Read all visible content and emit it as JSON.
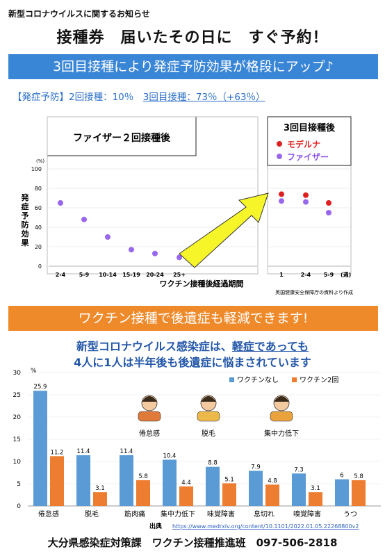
{
  "header": {
    "notice": "新型コロナウイルスに関するお知らせ",
    "headline": "接種券　届いたその日に　すぐ予約！"
  },
  "banner1": {
    "text": "3回目接種により発症予防効果が格段にアップ♪",
    "sub_label": "【発症予防】2回接種：10％　",
    "sub_highlight": "3回目接種：73％（+63％）"
  },
  "banner2": {
    "text": "ワクチン接種で後遺症も軽減できます!"
  },
  "longcovid": {
    "line1_a": "新型コロナウイルス感染症は、",
    "line1_b": "軽症であっても",
    "line2": "4人に1人は半年後も後遺症に悩まされています"
  },
  "footer": "大分県感染症対策課　ワクチン接種推進班　097-506-2818",
  "colors": {
    "blue_banner": "#3a86d6",
    "orange_banner": "#ef8a2b",
    "purple_dot": "#9966ee",
    "red_dot": "#e02020",
    "bar_blue": "#5b9bd5",
    "bar_orange": "#ed7d31",
    "arrow": "#f6f52a"
  },
  "chart_data": [
    {
      "type": "scatter",
      "panel_left_title": "ファイザー２回接種後",
      "panel_right_title": "3回目接種後",
      "ylabel": "発症予防効果",
      "yunit": "(%)",
      "xlabel": "ワクチン接種後経過期間",
      "xunit": "(週)",
      "source_note": "英国健康安全保障庁の資料より作成",
      "ylim": [
        0,
        100
      ],
      "yticks": [
        0,
        20,
        40,
        60,
        80,
        100
      ],
      "left": {
        "categories": [
          "2-4",
          "5-9",
          "10-14",
          "15-19",
          "20-24",
          "25+"
        ],
        "series": [
          {
            "name": "ファイザー",
            "values": [
              65,
              48,
              30,
              17,
              13,
              9
            ]
          }
        ]
      },
      "right": {
        "categories": [
          "1",
          "2-4",
          "5-9"
        ],
        "series": [
          {
            "name": "モデルナ",
            "values": [
              74,
              73,
              65
            ]
          },
          {
            "name": "ファイザー",
            "values": [
              67,
              66,
              55
            ]
          }
        ]
      }
    },
    {
      "type": "bar",
      "categories": [
        "倦怠感",
        "脱毛",
        "筋肉痛",
        "集中力低下",
        "味覚障害",
        "息切れ",
        "嗅覚障害",
        "うつ"
      ],
      "series": [
        {
          "name": "ワクチンなし",
          "values": [
            25.9,
            11.4,
            11.4,
            10.4,
            8.8,
            7.9,
            7.3,
            6.0
          ]
        },
        {
          "name": "ワクチン2回",
          "values": [
            11.2,
            3.1,
            5.8,
            4.4,
            5.1,
            4.8,
            3.1,
            5.8
          ]
        }
      ],
      "yunit": "%",
      "ylim": [
        0,
        30
      ],
      "yticks": [
        0,
        5,
        10,
        15,
        20,
        25,
        30
      ],
      "legend": "top-right",
      "illustrations": [
        "倦怠感",
        "脱毛",
        "集中力低下"
      ],
      "source_label": "出典",
      "source_url": "https://www.medrxiv.org/content/10.1101/2022.01.05.22268800v2"
    }
  ]
}
